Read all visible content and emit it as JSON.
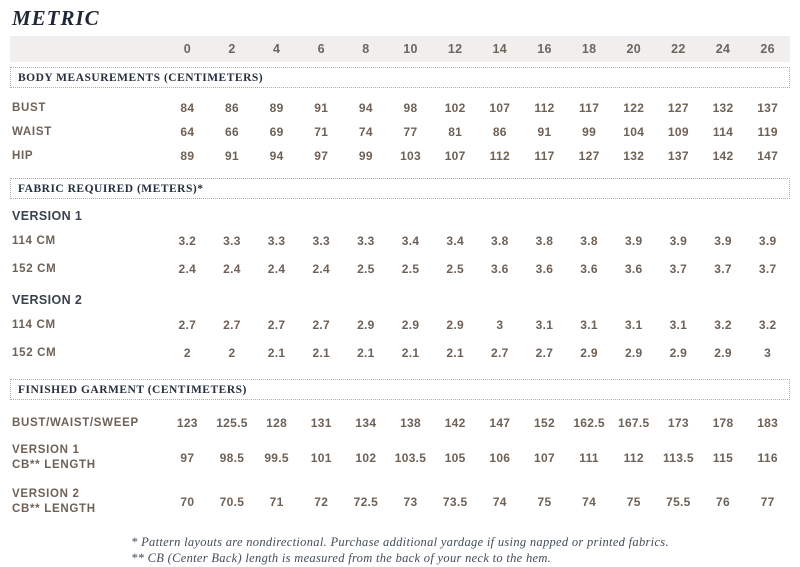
{
  "page": {
    "title": "METRIC"
  },
  "table": {
    "sizes": [
      "0",
      "2",
      "4",
      "6",
      "8",
      "10",
      "12",
      "14",
      "16",
      "18",
      "20",
      "22",
      "24",
      "26"
    ],
    "sections": [
      {
        "heading": "BODY MEASUREMENTS (CENTIMETERS)",
        "rows": [
          {
            "label": "BUST",
            "values": [
              "84",
              "86",
              "89",
              "91",
              "94",
              "98",
              "102",
              "107",
              "112",
              "117",
              "122",
              "127",
              "132",
              "137"
            ]
          },
          {
            "label": "WAIST",
            "values": [
              "64",
              "66",
              "69",
              "71",
              "74",
              "77",
              "81",
              "86",
              "91",
              "99",
              "104",
              "109",
              "114",
              "119"
            ]
          },
          {
            "label": "HIP",
            "values": [
              "89",
              "91",
              "94",
              "97",
              "99",
              "103",
              "107",
              "112",
              "117",
              "127",
              "132",
              "137",
              "142",
              "147"
            ]
          }
        ]
      },
      {
        "heading": "FABRIC REQUIRED (METERS)*",
        "rows": [
          {
            "subheading": "VERSION 1"
          },
          {
            "label": "114 CM",
            "values": [
              "3.2",
              "3.3",
              "3.3",
              "3.3",
              "3.3",
              "3.4",
              "3.4",
              "3.8",
              "3.8",
              "3.8",
              "3.9",
              "3.9",
              "3.9",
              "3.9"
            ]
          },
          {
            "label": "152 CM",
            "values": [
              "2.4",
              "2.4",
              "2.4",
              "2.4",
              "2.5",
              "2.5",
              "2.5",
              "3.6",
              "3.6",
              "3.6",
              "3.6",
              "3.7",
              "3.7",
              "3.7"
            ]
          },
          {
            "subheading": "VERSION 2"
          },
          {
            "label": "114 CM",
            "values": [
              "2.7",
              "2.7",
              "2.7",
              "2.7",
              "2.9",
              "2.9",
              "2.9",
              "3",
              "3.1",
              "3.1",
              "3.1",
              "3.1",
              "3.2",
              "3.2"
            ]
          },
          {
            "label": "152 CM",
            "values": [
              "2",
              "2",
              "2.1",
              "2.1",
              "2.1",
              "2.1",
              "2.1",
              "2.7",
              "2.7",
              "2.9",
              "2.9",
              "2.9",
              "2.9",
              "3"
            ]
          }
        ]
      },
      {
        "heading": "FINISHED GARMENT (CENTIMETERS)",
        "rows": [
          {
            "label": "BUST/WAIST/SWEEP",
            "values": [
              "123",
              "125.5",
              "128",
              "131",
              "134",
              "138",
              "142",
              "147",
              "152",
              "162.5",
              "167.5",
              "173",
              "178",
              "183"
            ]
          },
          {
            "label": "VERSION 1",
            "sublabel": "CB** LENGTH",
            "values": [
              "97",
              "98.5",
              "99.5",
              "101",
              "102",
              "103.5",
              "105",
              "106",
              "107",
              "111",
              "112",
              "113.5",
              "115",
              "116"
            ]
          },
          {
            "label": "VERSION 2",
            "sublabel": "CB** LENGTH",
            "values": [
              "70",
              "70.5",
              "71",
              "72",
              "72.5",
              "73",
              "73.5",
              "74",
              "75",
              "74",
              "75",
              "75.5",
              "76",
              "77"
            ]
          }
        ]
      }
    ],
    "footnotes": [
      "* Pattern layouts are nondirectional. Purchase additional yardage if using napped or printed fabrics.",
      "** CB (Center Back) length is measured from the back of your neck to the hem."
    ]
  }
}
